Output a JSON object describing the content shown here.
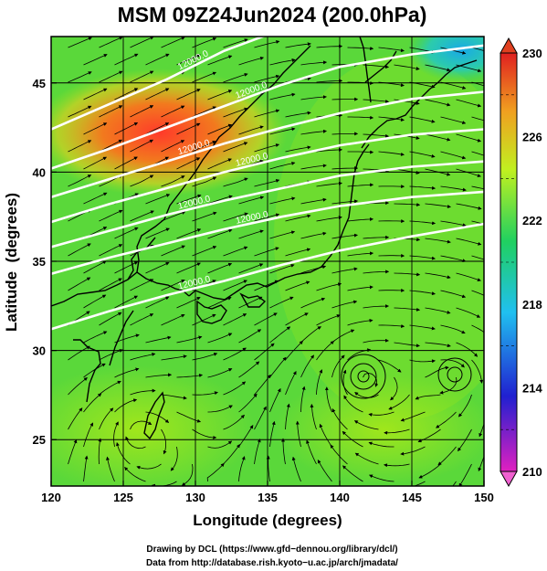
{
  "title": "MSM 09Z24Jun2024 (200.0hPa)",
  "chart_data": {
    "type": "heatmap",
    "title": "MSM 09Z24Jun2024 (200.0hPa)",
    "xlabel": "Longitude (degrees)",
    "ylabel": "Latitude  (degrees)",
    "xlim": [
      120,
      150
    ],
    "ylim": [
      22.4,
      47.6
    ],
    "x_ticks": [
      "120",
      "125",
      "130",
      "135",
      "140",
      "145",
      "150"
    ],
    "y_ticks": [
      "25",
      "30",
      "35",
      "40",
      "45"
    ],
    "grid": true,
    "colorbar": {
      "placement": "right",
      "range": [
        210,
        230
      ],
      "ticks": [
        "210",
        "214",
        "218",
        "222",
        "226",
        "230"
      ],
      "colors": [
        "#e020c0",
        "#2020d0",
        "#20c0f0",
        "#20d060",
        "#c0f020",
        "#f0a020",
        "#e02020"
      ]
    },
    "contours": [
      {
        "label": "12000.0",
        "points": [
          [
            120,
            42.4
          ],
          [
            124,
            43.8
          ],
          [
            128,
            45.2
          ],
          [
            132,
            46.8
          ],
          [
            136,
            48
          ]
        ]
      },
      {
        "label": "12000.0",
        "points": [
          [
            120,
            40.2
          ],
          [
            124,
            41.3
          ],
          [
            128,
            42.5
          ],
          [
            132,
            43.7
          ],
          [
            136,
            44.9
          ],
          [
            140,
            45.9
          ],
          [
            145,
            46.6
          ],
          [
            150,
            47.1
          ]
        ]
      },
      {
        "label": "12000.0",
        "points": [
          [
            120,
            38.6
          ],
          [
            124,
            39.6
          ],
          [
            128,
            40.6
          ],
          [
            132,
            41.6
          ],
          [
            136,
            42.5
          ],
          [
            140,
            43.3
          ],
          [
            145,
            44.1
          ],
          [
            150,
            44.5
          ]
        ]
      },
      {
        "label": "12000.0",
        "points": [
          [
            120,
            37.2
          ],
          [
            124,
            38.2
          ],
          [
            128,
            39.1
          ],
          [
            132,
            40.0
          ],
          [
            136,
            40.8
          ],
          [
            140,
            41.5
          ],
          [
            145,
            42.1
          ],
          [
            150,
            42.4
          ]
        ]
      },
      {
        "label": "12000.0",
        "points": [
          [
            120,
            35.8
          ],
          [
            124,
            36.7
          ],
          [
            128,
            37.6
          ],
          [
            132,
            38.4
          ],
          [
            136,
            39.1
          ],
          [
            140,
            39.8
          ],
          [
            145,
            40.3
          ],
          [
            150,
            40.6
          ]
        ]
      },
      {
        "label": "12000.0",
        "points": [
          [
            120,
            34.3
          ],
          [
            124,
            35.2
          ],
          [
            128,
            36.0
          ],
          [
            132,
            36.8
          ],
          [
            136,
            37.5
          ],
          [
            140,
            38.1
          ],
          [
            145,
            38.6
          ],
          [
            150,
            38.9
          ]
        ]
      },
      {
        "label": "12000.0",
        "points": [
          [
            120,
            31.2
          ],
          [
            124,
            32.2
          ],
          [
            128,
            33.1
          ],
          [
            132,
            33.9
          ],
          [
            136,
            34.8
          ],
          [
            140,
            35.6
          ],
          [
            145,
            36.4
          ],
          [
            150,
            37.1
          ]
        ]
      }
    ]
  },
  "credits": {
    "line1": "Drawing by DCL (https://www.gfd−dennou.org/library/dcl/)",
    "line2": "Data from http://database.rish.kyoto−u.ac.jp/arch/jmadata/"
  }
}
